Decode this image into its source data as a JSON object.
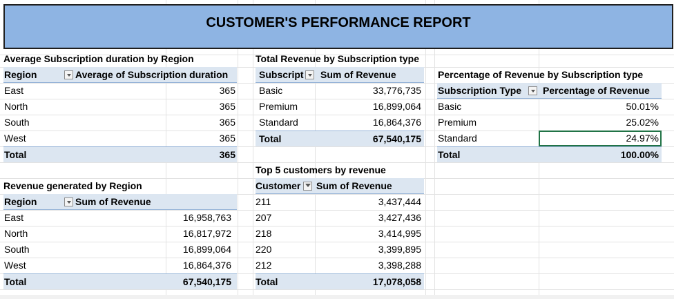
{
  "title": "CUSTOMER'S PERFORMANCE REPORT",
  "avg_duration": {
    "caption": "Average Subscription duration by Region",
    "headers": [
      "Region",
      "Average of Subscription duration"
    ],
    "rows": [
      [
        "East",
        "365"
      ],
      [
        "North",
        "365"
      ],
      [
        "South",
        "365"
      ],
      [
        "West",
        "365"
      ]
    ],
    "total": [
      "Total",
      "365"
    ]
  },
  "revenue_by_type": {
    "caption": "Total Revenue by Subscription type",
    "headers": [
      "Subscript",
      "Sum of Revenue"
    ],
    "rows": [
      [
        "Basic",
        "33,776,735"
      ],
      [
        "Premium",
        "16,899,064"
      ],
      [
        "Standard",
        "16,864,376"
      ]
    ],
    "total": [
      "Total",
      "67,540,175"
    ]
  },
  "pct_by_type": {
    "caption": "Percentage of Revenue by Subscription type",
    "headers": [
      "Subscription Type",
      "Percentage of Revenue"
    ],
    "rows": [
      [
        "Basic",
        "50.01%"
      ],
      [
        "Premium",
        "25.02%"
      ],
      [
        "Standard",
        "24.97%"
      ]
    ],
    "total": [
      "Total",
      "100.00%"
    ]
  },
  "revenue_by_region": {
    "caption": "Revenue generated by Region",
    "headers": [
      "Region",
      "Sum of Revenue"
    ],
    "rows": [
      [
        "East",
        "16,958,763"
      ],
      [
        "North",
        "16,817,972"
      ],
      [
        "South",
        "16,899,064"
      ],
      [
        "West",
        "16,864,376"
      ]
    ],
    "total": [
      "Total",
      "67,540,175"
    ]
  },
  "top5": {
    "caption": "Top 5 customers by revenue",
    "headers": [
      "Customer",
      "Sum of Revenue"
    ],
    "rows": [
      [
        "211",
        "3,437,444"
      ],
      [
        "207",
        "3,427,436"
      ],
      [
        "218",
        "3,414,995"
      ],
      [
        "220",
        "3,399,895"
      ],
      [
        "212",
        "3,398,288"
      ]
    ],
    "total": [
      "Total",
      "17,078,058"
    ]
  }
}
